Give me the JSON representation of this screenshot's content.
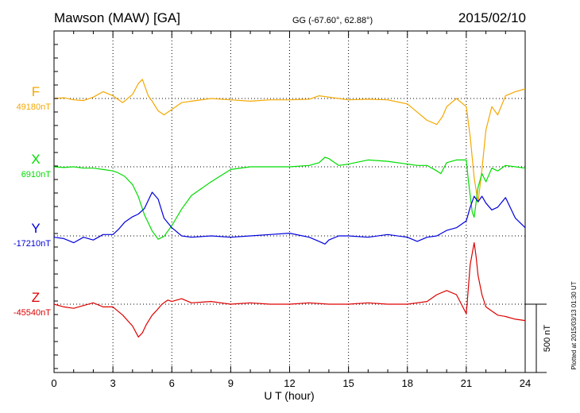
{
  "header": {
    "station": "Mawson (MAW)  [GA]",
    "coords": "GG (-67.60°,  62.88°)",
    "date": "2015/02/10"
  },
  "plotted_note": "Plotted at 2015/03/13 01:30 UT",
  "scale_label": "500 nT",
  "colors": {
    "F": "#f5a800",
    "X": "#00dd00",
    "Y": "#0000dd",
    "Z": "#dd0000"
  },
  "chart_data": {
    "type": "line",
    "title": "Mawson (MAW)  [GA]",
    "xlabel": "U T (hour)",
    "xlim": [
      0,
      24
    ],
    "x_ticks": [
      "0",
      "3",
      "6",
      "9",
      "12",
      "15",
      "18",
      "21",
      "24"
    ],
    "scale_bar_nT": 500,
    "grid": "dotted vertical every 3 h, dotted baseline per component",
    "series": [
      {
        "name": "F",
        "baseline_label": "49180nT",
        "baseline": 49180,
        "x": [
          0,
          0.5,
          1,
          1.5,
          2,
          2.5,
          3,
          3.5,
          4,
          4.3,
          4.5,
          4.8,
          5,
          5.3,
          5.6,
          6,
          6.5,
          7,
          8,
          9,
          10,
          11,
          12,
          13,
          13.5,
          14,
          14.5,
          15,
          16,
          17,
          18,
          18.5,
          19,
          19.5,
          19.8,
          20,
          20.5,
          21,
          21.2,
          21.4,
          21.6,
          21.8,
          22,
          22.3,
          22.6,
          23,
          23.5,
          24
        ],
        "y": [
          49180,
          49185,
          49170,
          49165,
          49190,
          49230,
          49200,
          49150,
          49210,
          49290,
          49320,
          49200,
          49160,
          49090,
          49060,
          49100,
          49150,
          49160,
          49180,
          49170,
          49160,
          49170,
          49170,
          49175,
          49200,
          49190,
          49180,
          49170,
          49175,
          49170,
          49140,
          49080,
          49020,
          48990,
          49050,
          49120,
          49180,
          49120,
          48900,
          48600,
          48420,
          48660,
          48950,
          49120,
          49060,
          49200,
          49230,
          49250
        ]
      },
      {
        "name": "X",
        "baseline_label": "6910nT",
        "baseline": 6910,
        "x": [
          0,
          0.5,
          1,
          1.5,
          2,
          2.5,
          3,
          3.2,
          3.6,
          4,
          4.3,
          4.6,
          5,
          5.3,
          5.6,
          6,
          6.5,
          7,
          8,
          9,
          10,
          11,
          12,
          13,
          13.5,
          13.8,
          14,
          14.5,
          15,
          16,
          17,
          18,
          18.5,
          19,
          19.5,
          19.7,
          20,
          20.5,
          21,
          21.1,
          21.2,
          21.3,
          21.4,
          21.6,
          21.8,
          22,
          22.3,
          22.6,
          23,
          23.5,
          24
        ],
        "y": [
          6910,
          6905,
          6910,
          6900,
          6900,
          6890,
          6880,
          6870,
          6840,
          6780,
          6690,
          6560,
          6440,
          6380,
          6400,
          6480,
          6600,
          6700,
          6800,
          6890,
          6910,
          6910,
          6910,
          6920,
          6940,
          6980,
          6970,
          6920,
          6930,
          6960,
          6950,
          6930,
          6920,
          6920,
          6880,
          6860,
          6940,
          6960,
          6960,
          6820,
          6700,
          6580,
          6540,
          6760,
          6860,
          6800,
          6900,
          6880,
          6920,
          6910,
          6900
        ]
      },
      {
        "name": "Y",
        "baseline_label": "-17210nT",
        "baseline": -17210,
        "x": [
          0,
          0.5,
          1,
          1.5,
          2,
          2.5,
          3,
          3.3,
          3.6,
          4,
          4.3,
          4.6,
          5,
          5.3,
          5.6,
          6,
          6.5,
          7,
          8,
          9,
          10,
          11,
          12,
          13,
          13.5,
          13.8,
          14,
          14.5,
          15,
          16,
          17,
          18,
          18.5,
          19,
          19.5,
          20,
          20.5,
          21,
          21.2,
          21.4,
          21.6,
          21.8,
          22,
          22.3,
          22.6,
          23,
          23.5,
          24
        ],
        "y": [
          -17220,
          -17230,
          -17260,
          -17220,
          -17240,
          -17200,
          -17200,
          -17160,
          -17110,
          -17070,
          -17050,
          -17010,
          -16890,
          -16940,
          -17080,
          -17150,
          -17210,
          -17220,
          -17210,
          -17220,
          -17210,
          -17200,
          -17190,
          -17220,
          -17250,
          -17270,
          -17240,
          -17210,
          -17210,
          -17220,
          -17200,
          -17220,
          -17250,
          -17220,
          -17210,
          -17170,
          -17150,
          -17100,
          -17000,
          -16920,
          -16960,
          -16920,
          -16970,
          -17020,
          -17000,
          -16930,
          -17080,
          -17150
        ]
      },
      {
        "name": "Z",
        "baseline_label": "-45540nT",
        "baseline": -45540,
        "x": [
          0,
          0.5,
          1,
          1.5,
          2,
          2.5,
          3,
          3.5,
          4,
          4.3,
          4.5,
          4.7,
          5,
          5.2,
          5.5,
          5.8,
          6,
          6.5,
          7,
          8,
          9,
          10,
          11,
          12,
          13,
          14,
          15,
          16,
          17,
          18,
          19,
          19.5,
          20,
          20.5,
          21,
          21.2,
          21.4,
          21.5,
          21.6,
          21.8,
          22,
          22.3,
          22.6,
          23,
          23.5,
          24
        ],
        "y": [
          -45540,
          -45560,
          -45570,
          -45550,
          -45530,
          -45560,
          -45560,
          -45620,
          -45700,
          -45780,
          -45750,
          -45690,
          -45620,
          -45590,
          -45540,
          -45510,
          -45520,
          -45500,
          -45530,
          -45520,
          -45540,
          -45530,
          -45540,
          -45540,
          -45530,
          -45540,
          -45540,
          -45530,
          -45540,
          -45540,
          -45520,
          -45470,
          -45440,
          -45470,
          -45610,
          -45250,
          -45090,
          -45190,
          -45330,
          -45470,
          -45560,
          -45590,
          -45620,
          -45630,
          -45650,
          -45660
        ]
      }
    ]
  }
}
